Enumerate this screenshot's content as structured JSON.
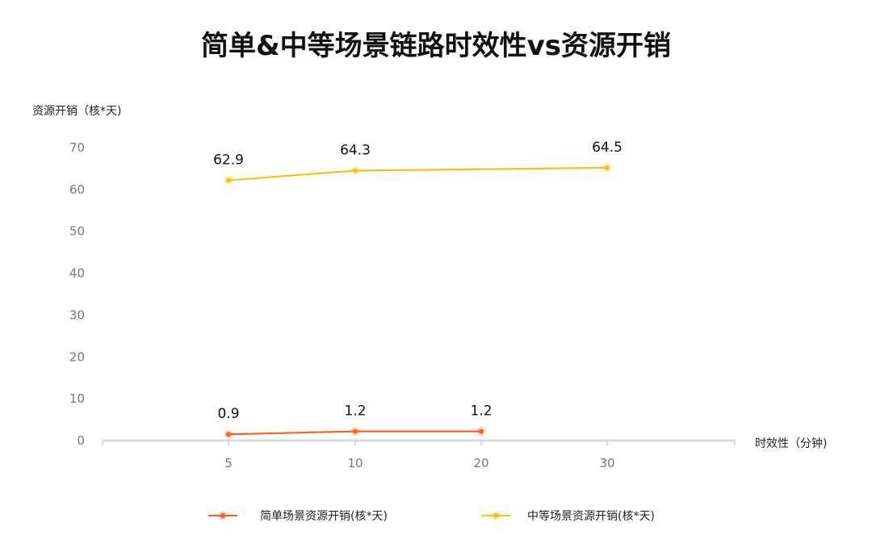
{
  "chart_data": {
    "type": "line",
    "title": "简单&中等场景链路时效性vs资源开销",
    "ylabel": "资源开销（核*天)",
    "xlabel": "时效性（分钟)",
    "categories": [
      "5",
      "10",
      "20",
      "30"
    ],
    "ylim": [
      0,
      70
    ],
    "yticks": [
      0,
      10,
      20,
      30,
      40,
      50,
      60,
      70
    ],
    "grid": false,
    "legend_position": "bottom",
    "series": [
      {
        "name": "简单场景资源开销(核*天)",
        "color": "#F4651E",
        "values": [
          0.9,
          1.2,
          1.2,
          null
        ]
      },
      {
        "name": "中等场景资源开销(核*天)",
        "color": "#F9C114",
        "values": [
          62.9,
          64.3,
          null,
          64.5
        ]
      }
    ],
    "series_render_y": [
      [
        1.5,
        2.2,
        2.2,
        null
      ],
      [
        62.2,
        64.5,
        null,
        65.2
      ]
    ]
  }
}
